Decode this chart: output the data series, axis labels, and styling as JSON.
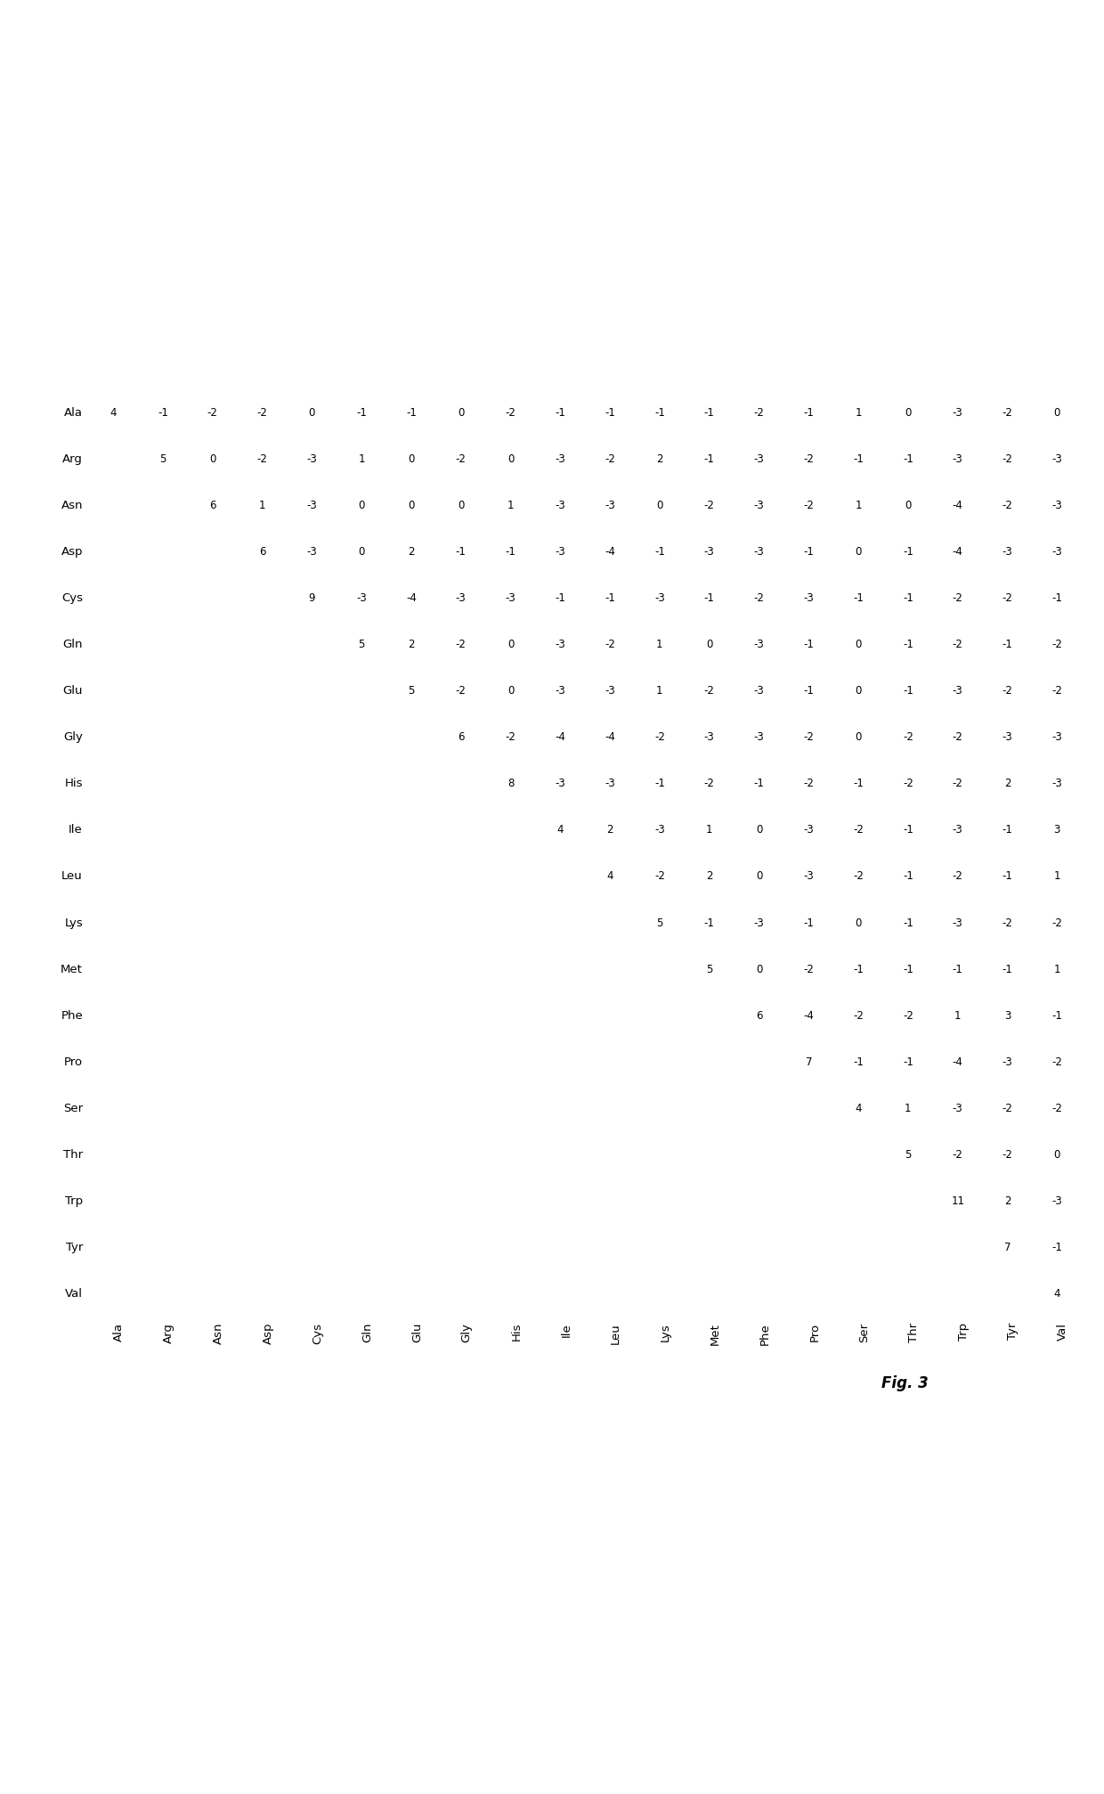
{
  "amino_acids": [
    "Ala",
    "Arg",
    "Asn",
    "Asp",
    "Cys",
    "Gln",
    "Glu",
    "Gly",
    "His",
    "Ile",
    "Leu",
    "Lys",
    "Met",
    "Phe",
    "Pro",
    "Ser",
    "Thr",
    "Trp",
    "Tyr",
    "Val"
  ],
  "matrix": [
    [
      4,
      null,
      null,
      null,
      null,
      null,
      null,
      null,
      null,
      null,
      null,
      null,
      null,
      null,
      null,
      null,
      null,
      null,
      null,
      null
    ],
    [
      -1,
      5,
      null,
      null,
      null,
      null,
      null,
      null,
      null,
      null,
      null,
      null,
      null,
      null,
      null,
      null,
      null,
      null,
      null,
      null
    ],
    [
      -2,
      0,
      6,
      null,
      null,
      null,
      null,
      null,
      null,
      null,
      null,
      null,
      null,
      null,
      null,
      null,
      null,
      null,
      null,
      null
    ],
    [
      -2,
      -2,
      1,
      6,
      null,
      null,
      null,
      null,
      null,
      null,
      null,
      null,
      null,
      null,
      null,
      null,
      null,
      null,
      null,
      null
    ],
    [
      0,
      -3,
      -3,
      -3,
      9,
      null,
      null,
      null,
      null,
      null,
      null,
      null,
      null,
      null,
      null,
      null,
      null,
      null,
      null,
      null
    ],
    [
      -1,
      1,
      0,
      0,
      -3,
      5,
      null,
      null,
      null,
      null,
      null,
      null,
      null,
      null,
      null,
      null,
      null,
      null,
      null,
      null
    ],
    [
      -1,
      0,
      0,
      2,
      -4,
      2,
      5,
      null,
      null,
      null,
      null,
      null,
      null,
      null,
      null,
      null,
      null,
      null,
      null,
      null
    ],
    [
      0,
      -2,
      0,
      -1,
      -3,
      -2,
      -2,
      6,
      null,
      null,
      null,
      null,
      null,
      null,
      null,
      null,
      null,
      null,
      null,
      null
    ],
    [
      -2,
      0,
      1,
      -1,
      -3,
      0,
      0,
      -2,
      8,
      null,
      null,
      null,
      null,
      null,
      null,
      null,
      null,
      null,
      null,
      null
    ],
    [
      -1,
      -3,
      -3,
      -3,
      -1,
      -3,
      -3,
      -4,
      -3,
      4,
      null,
      null,
      null,
      null,
      null,
      null,
      null,
      null,
      null,
      null
    ],
    [
      -1,
      -2,
      -3,
      -4,
      -1,
      -2,
      -3,
      -4,
      -3,
      2,
      4,
      null,
      null,
      null,
      null,
      null,
      null,
      null,
      null,
      null
    ],
    [
      -1,
      2,
      0,
      -1,
      -3,
      1,
      1,
      -2,
      -1,
      -3,
      -2,
      5,
      null,
      null,
      null,
      null,
      null,
      null,
      null,
      null
    ],
    [
      -1,
      -1,
      -2,
      -3,
      -1,
      0,
      -2,
      -3,
      -2,
      1,
      2,
      -1,
      5,
      null,
      null,
      null,
      null,
      null,
      null,
      null
    ],
    [
      -2,
      -3,
      -3,
      -3,
      -2,
      -3,
      -3,
      -3,
      -1,
      0,
      0,
      -3,
      0,
      6,
      null,
      null,
      null,
      null,
      null,
      null
    ],
    [
      -1,
      -2,
      -2,
      -1,
      -3,
      -1,
      -1,
      -2,
      -2,
      -3,
      -3,
      -1,
      -2,
      -4,
      7,
      null,
      null,
      null,
      null,
      null
    ],
    [
      1,
      -1,
      1,
      0,
      -1,
      0,
      0,
      0,
      -1,
      -2,
      -2,
      0,
      -1,
      -2,
      -1,
      4,
      null,
      null,
      null,
      null
    ],
    [
      0,
      -1,
      0,
      -1,
      -1,
      -1,
      -1,
      -2,
      -2,
      -1,
      -1,
      -1,
      -1,
      -2,
      -1,
      1,
      5,
      null,
      null,
      null
    ],
    [
      -3,
      -3,
      -4,
      -4,
      -2,
      -2,
      -3,
      -2,
      -2,
      -3,
      -2,
      -3,
      -1,
      1,
      -4,
      -3,
      -2,
      11,
      null,
      null
    ],
    [
      -2,
      -2,
      -2,
      -3,
      -2,
      -1,
      -2,
      -3,
      2,
      -1,
      -1,
      -2,
      -1,
      3,
      -3,
      -2,
      -2,
      2,
      7,
      null
    ],
    [
      0,
      -3,
      -3,
      -3,
      -1,
      -2,
      -2,
      -3,
      -3,
      3,
      1,
      -2,
      1,
      -1,
      -2,
      -2,
      0,
      -3,
      -1,
      4
    ]
  ],
  "title": "Fig. 3",
  "background_color": "#ffffff",
  "text_color": "#000000",
  "font_size": 8.5,
  "label_font_size": 9.5
}
